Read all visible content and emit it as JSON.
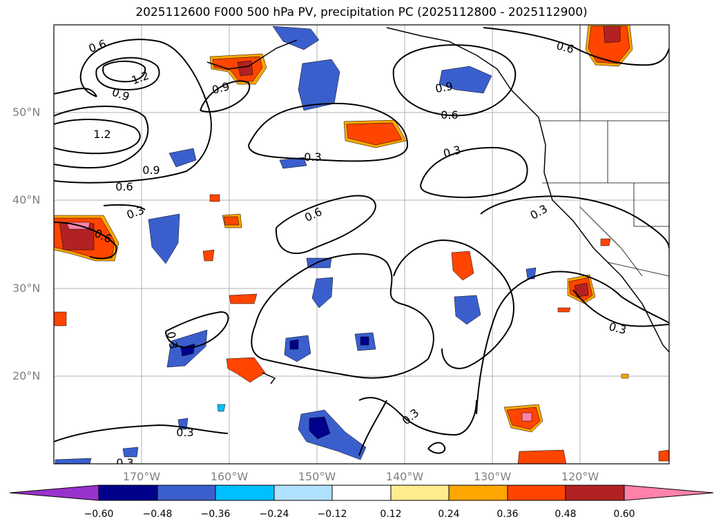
{
  "title": "2025112600 F000 500 hPa PV, precipitation PC (2025112800 - 2025112900)",
  "lat_labels": [
    "50°N",
    "40°N",
    "30°N",
    "20°N"
  ],
  "lon_labels": [
    "170°W",
    "160°W",
    "150°W",
    "140°W",
    "130°W",
    "120°W"
  ],
  "contour_labels": [
    "0.6",
    "1.2",
    "0.9",
    "0.9",
    "1.2",
    "0.9",
    "0.6",
    "0.3",
    "0.6",
    "0.3",
    "0.6",
    "0.9",
    "0.6",
    "0.6",
    "0.3",
    "0.3",
    "0.3",
    "0.3",
    "0.3",
    "0.3",
    "0.3"
  ],
  "colorbar": {
    "ticks": [
      "−0.60",
      "−0.48",
      "−0.36",
      "−0.24",
      "−0.12",
      "0.12",
      "0.24",
      "0.36",
      "0.48",
      "0.60"
    ],
    "colors": [
      "#9932cc",
      "#00008b",
      "#3a5fcd",
      "#00bfff",
      "#b0e2ff",
      "#ffffff",
      "#ffec8b",
      "#ffa500",
      "#ff4500",
      "#b22222",
      "#ff82ab"
    ]
  }
}
